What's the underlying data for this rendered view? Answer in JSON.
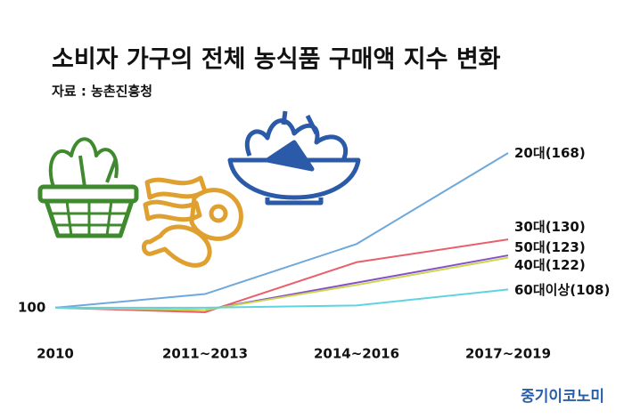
{
  "chart_data": {
    "type": "line",
    "title": "소비자 가구의 전체 농식품 구매액 지수 변화",
    "subtitle": "자료 : 농촌진흥청",
    "source": "중기이코노미",
    "categories": [
      "2010",
      "2011~2013",
      "2014~2016",
      "2017~2019"
    ],
    "series": [
      {
        "name": "20대",
        "color": "#6fa8dc",
        "values": [
          100,
          106,
          128,
          168
        ],
        "value_labels": [
          null,
          null,
          null,
          "(168)"
        ]
      },
      {
        "name": "30대",
        "color": "#e8606a",
        "values": [
          100,
          98,
          120,
          130
        ],
        "value_labels": [
          null,
          null,
          null,
          "(130)"
        ]
      },
      {
        "name": "50대",
        "color": "#8a4fc8",
        "values": [
          100,
          99,
          111,
          123
        ],
        "value_labels": [
          null,
          null,
          null,
          "(123)"
        ]
      },
      {
        "name": "40대",
        "color": "#c8d84a",
        "values": [
          100,
          99,
          110,
          122
        ],
        "value_labels": [
          null,
          null,
          null,
          "(122)"
        ]
      },
      {
        "name": "60대이상",
        "color": "#5fd3e0",
        "values": [
          100,
          100,
          101,
          108
        ],
        "value_labels": [
          null,
          null,
          null,
          "(108)"
        ]
      }
    ]
  }
}
